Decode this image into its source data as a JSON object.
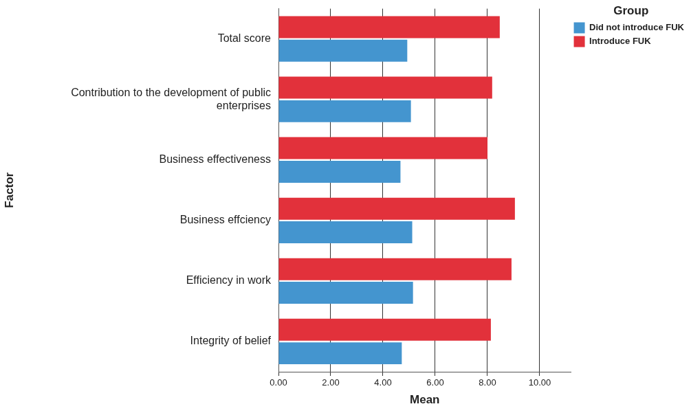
{
  "chart_data": {
    "type": "bar",
    "orientation": "horizontal",
    "xlabel": "Mean",
    "ylabel": "Factor",
    "legend_title": "Group",
    "legend": "top right",
    "grid": "x",
    "categories": [
      "Total score",
      "Contribution to the development of public enterprises",
      "Business effectiveness",
      "Business effciency",
      "Efficiency in work",
      "Integrity of belief"
    ],
    "series": [
      {
        "name": "Introduce FUK",
        "color": "#e2313b",
        "values": [
          8.47,
          8.18,
          8.0,
          9.05,
          8.92,
          8.13
        ]
      },
      {
        "name": "Did not introduce FUK",
        "color": "#4495cf",
        "values": [
          4.93,
          5.07,
          4.67,
          5.12,
          5.15,
          4.72
        ]
      }
    ],
    "xlim": [
      0,
      11.2
    ],
    "xticks": [
      {
        "value": 0,
        "label": "0.00"
      },
      {
        "value": 2,
        "label": "2.00"
      },
      {
        "value": 4,
        "label": "4.00"
      },
      {
        "value": 6,
        "label": "6.00"
      },
      {
        "value": 8,
        "label": "8.00"
      },
      {
        "value": 10,
        "label": "10.00"
      }
    ]
  }
}
